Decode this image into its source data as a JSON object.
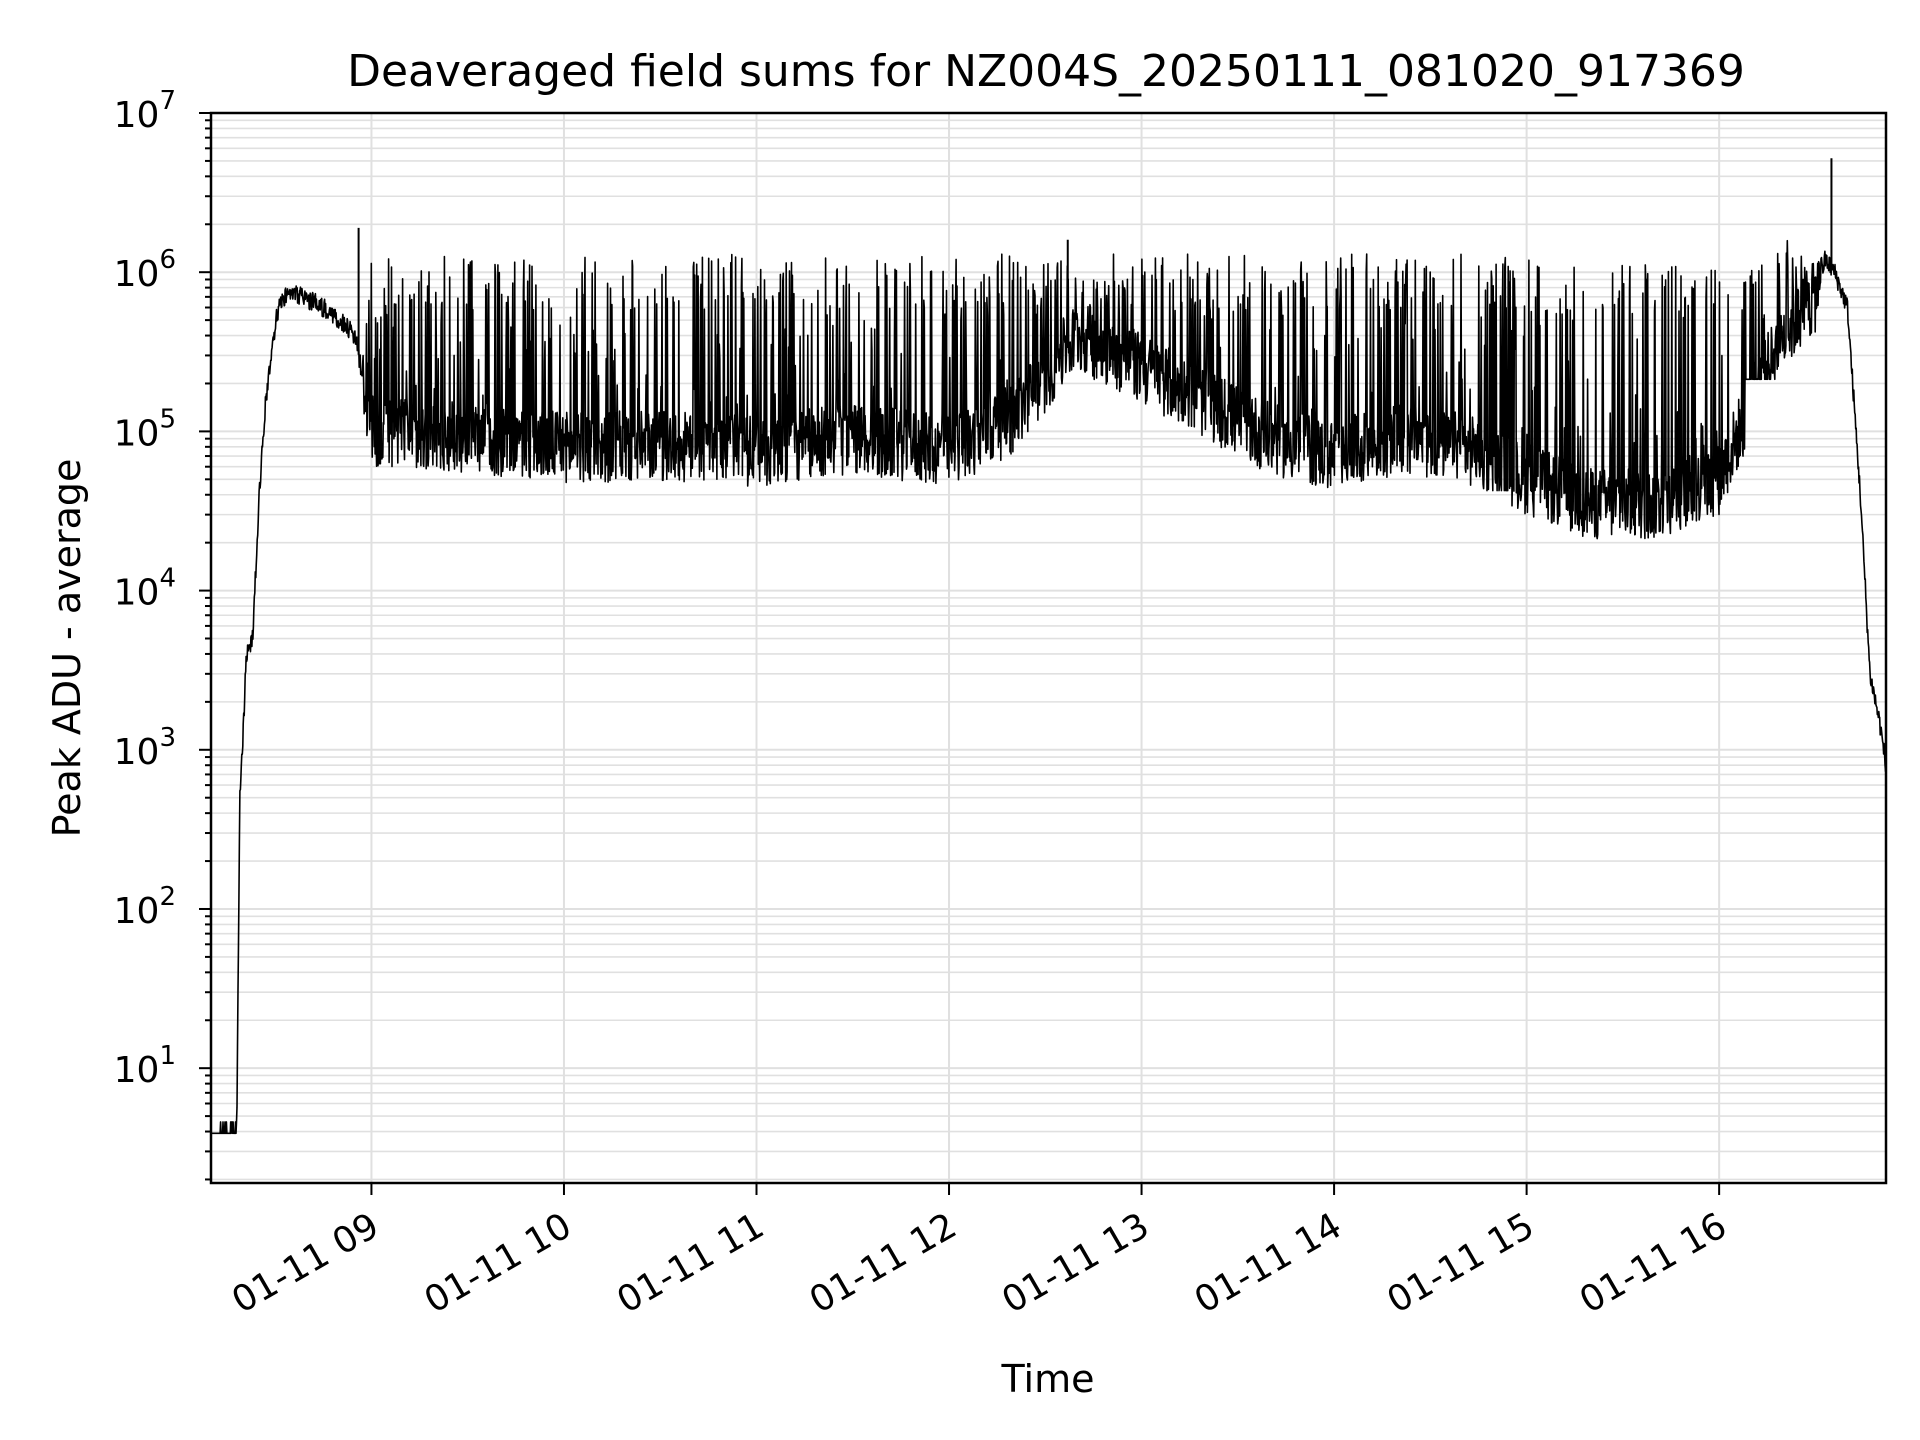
{
  "chart_data": {
    "type": "line",
    "title": "Deaveraged field sums for NZ004S_20250111_081020_917369",
    "xlabel": "Time",
    "ylabel": "Peak ADU - average",
    "yscale": "log",
    "grid": true,
    "line_color": "#000000",
    "grid_color": "#e0e0e0",
    "xlim": [
      "2025-01-11T08:10",
      "2025-01-11T16:52"
    ],
    "ylim": [
      1.9,
      10000000
    ],
    "x_ticks": [
      {
        "value": "2025-01-11T09:00",
        "label": "01-11 09"
      },
      {
        "value": "2025-01-11T10:00",
        "label": "01-11 10"
      },
      {
        "value": "2025-01-11T11:00",
        "label": "01-11 11"
      },
      {
        "value": "2025-01-11T12:00",
        "label": "01-11 12"
      },
      {
        "value": "2025-01-11T13:00",
        "label": "01-11 13"
      },
      {
        "value": "2025-01-11T14:00",
        "label": "01-11 14"
      },
      {
        "value": "2025-01-11T15:00",
        "label": "01-11 15"
      },
      {
        "value": "2025-01-11T16:00",
        "label": "01-11 16"
      }
    ],
    "y_ticks": [
      {
        "value": 10,
        "base": "10",
        "exp": "1"
      },
      {
        "value": 100,
        "base": "10",
        "exp": "2"
      },
      {
        "value": 1000,
        "base": "10",
        "exp": "3"
      },
      {
        "value": 10000,
        "base": "10",
        "exp": "4"
      },
      {
        "value": 100000,
        "base": "10",
        "exp": "5"
      },
      {
        "value": 1000000,
        "base": "10",
        "exp": "6"
      },
      {
        "value": 10000000,
        "base": "10",
        "exp": "7"
      }
    ],
    "series": [
      {
        "x": [
          "2025-01-11T08:10",
          "2025-01-11T08:18",
          "2025-01-11T08:19",
          "2025-01-11T08:20",
          "2025-01-11T08:21",
          "2025-01-11T08:23",
          "2025-01-11T08:25",
          "2025-01-11T08:27",
          "2025-01-11T08:29",
          "2025-01-11T08:31",
          "2025-01-11T08:33",
          "2025-01-11T08:35",
          "2025-01-11T08:38",
          "2025-01-11T08:42",
          "2025-01-11T08:48",
          "2025-01-11T08:55",
          "2025-01-11T09:00",
          "2025-01-11T09:30",
          "2025-01-11T10:00",
          "2025-01-11T10:30",
          "2025-01-11T11:00",
          "2025-01-11T11:30",
          "2025-01-11T12:00",
          "2025-01-11T12:20",
          "2025-01-11T12:40",
          "2025-01-11T13:00",
          "2025-01-11T13:20",
          "2025-01-11T13:40",
          "2025-01-11T14:00",
          "2025-01-11T14:20",
          "2025-01-11T14:40",
          "2025-01-11T15:00",
          "2025-01-11T15:20",
          "2025-01-11T15:40",
          "2025-01-11T16:00",
          "2025-01-11T16:10",
          "2025-01-11T16:20",
          "2025-01-11T16:30",
          "2025-01-11T16:33",
          "2025-01-11T16:36",
          "2025-01-11T16:40",
          "2025-01-11T16:44",
          "2025-01-11T16:47",
          "2025-01-11T16:50",
          "2025-01-11T16:52"
        ],
        "y": [
          3.9,
          3.9,
          500,
          1200,
          4000,
          5000,
          40000,
          150000,
          350000,
          600000,
          700000,
          750000,
          700000,
          650000,
          550000,
          400000,
          100000,
          90000,
          80000,
          80000,
          75000,
          90000,
          75000,
          120000,
          400000,
          250000,
          150000,
          90000,
          70000,
          90000,
          80000,
          50000,
          35000,
          35000,
          50000,
          150000,
          400000,
          700000,
          1200000,
          1000000,
          600000,
          40000,
          3000,
          1500,
          800
        ]
      }
    ],
    "spike_bands": [
      {
        "x_start": "2025-01-11T08:57",
        "x_end": "2025-01-11T14:55",
        "high": 1300000,
        "low": 60000
      },
      {
        "x_start": "2025-01-11T14:55",
        "x_end": "2025-01-11T16:08",
        "high": 1200000,
        "low": 25000
      },
      {
        "x_start": "2025-01-11T16:08",
        "x_end": "2025-01-11T16:32",
        "high": 1600000,
        "low": 300000
      }
    ],
    "peaks": [
      {
        "x": "2025-01-11T08:56",
        "y": 1900000
      },
      {
        "x": "2025-01-11T12:37",
        "y": 1600000
      },
      {
        "x": "2025-01-11T16:35",
        "y": 5200000
      }
    ]
  }
}
